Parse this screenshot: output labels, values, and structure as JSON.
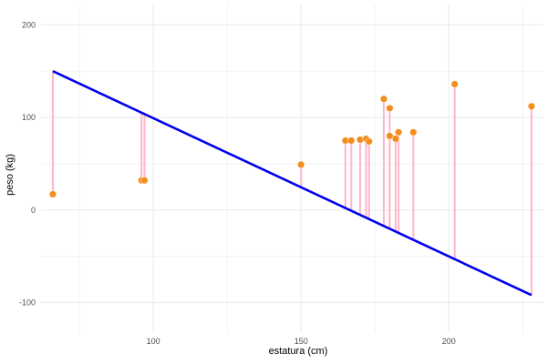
{
  "chart_data": {
    "type": "scatter",
    "title": "",
    "xlabel": "estatura (cm)",
    "ylabel": "peso (kg)",
    "xlim": [
      62,
      232
    ],
    "ylim": [
      -133,
      222
    ],
    "x_ticks": [
      100,
      150,
      200
    ],
    "x_minor_ticks": [
      75,
      125,
      175,
      225
    ],
    "y_ticks": [
      -100,
      0,
      100,
      200
    ],
    "y_minor_ticks": [
      -50,
      50,
      150
    ],
    "x_tick_labels": [
      "100",
      "150",
      "200"
    ],
    "y_tick_labels": [
      "-100",
      "0",
      "100",
      "200"
    ],
    "grid": true,
    "colors": {
      "points": "#f28e1c",
      "residuals": "#ffb6c8",
      "fit_line": "#0000ee",
      "grid": "#ebebeb"
    },
    "fit_line": {
      "x": [
        66,
        228
      ],
      "y": [
        150,
        -92
      ]
    },
    "points": [
      {
        "x": 66,
        "y": 17,
        "fitted": 150
      },
      {
        "x": 96,
        "y": 32,
        "fitted": 105
      },
      {
        "x": 97,
        "y": 32,
        "fitted": 104
      },
      {
        "x": 150,
        "y": 49,
        "fitted": 24
      },
      {
        "x": 165,
        "y": 75,
        "fitted": 2
      },
      {
        "x": 167,
        "y": 75,
        "fitted": -1
      },
      {
        "x": 170,
        "y": 76,
        "fitted": -5
      },
      {
        "x": 172,
        "y": 77,
        "fitted": -8
      },
      {
        "x": 173,
        "y": 74,
        "fitted": -10
      },
      {
        "x": 178,
        "y": 120,
        "fitted": -17
      },
      {
        "x": 180,
        "y": 110,
        "fitted": -20
      },
      {
        "x": 180,
        "y": 80,
        "fitted": -20
      },
      {
        "x": 182,
        "y": 77,
        "fitted": -23
      },
      {
        "x": 183,
        "y": 84,
        "fitted": -25
      },
      {
        "x": 188,
        "y": 84,
        "fitted": -32
      },
      {
        "x": 202,
        "y": 136,
        "fitted": -53
      },
      {
        "x": 228,
        "y": 112,
        "fitted": -92
      }
    ]
  }
}
